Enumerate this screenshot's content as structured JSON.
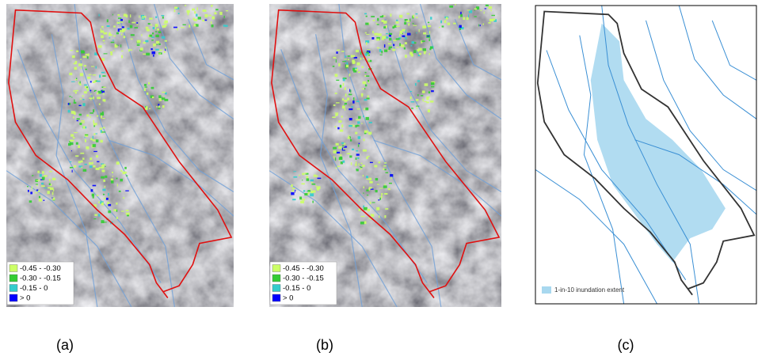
{
  "panels": [
    {
      "caption": "(a)",
      "legend": [
        {
          "label": "-0.45 - -0.30",
          "color": "#ccff66"
        },
        {
          "label": "-0.30 - -0.15",
          "color": "#33cc33"
        },
        {
          "label": "-0.15 - 0",
          "color": "#33cccc"
        },
        {
          "label": "> 0",
          "color": "#0000ff"
        }
      ]
    },
    {
      "caption": "(b)",
      "legend": [
        {
          "label": "-0.45 - -0.30",
          "color": "#ccff66"
        },
        {
          "label": "-0.30 - -0.15",
          "color": "#33cc33"
        },
        {
          "label": "-0.15 - 0",
          "color": "#33cccc"
        },
        {
          "label": "> 0",
          "color": "#0000ff"
        }
      ]
    },
    {
      "caption": "(c)",
      "legend": [
        {
          "label": "1-in-10 inundation extent",
          "color": "#a8d8ef"
        }
      ]
    }
  ]
}
